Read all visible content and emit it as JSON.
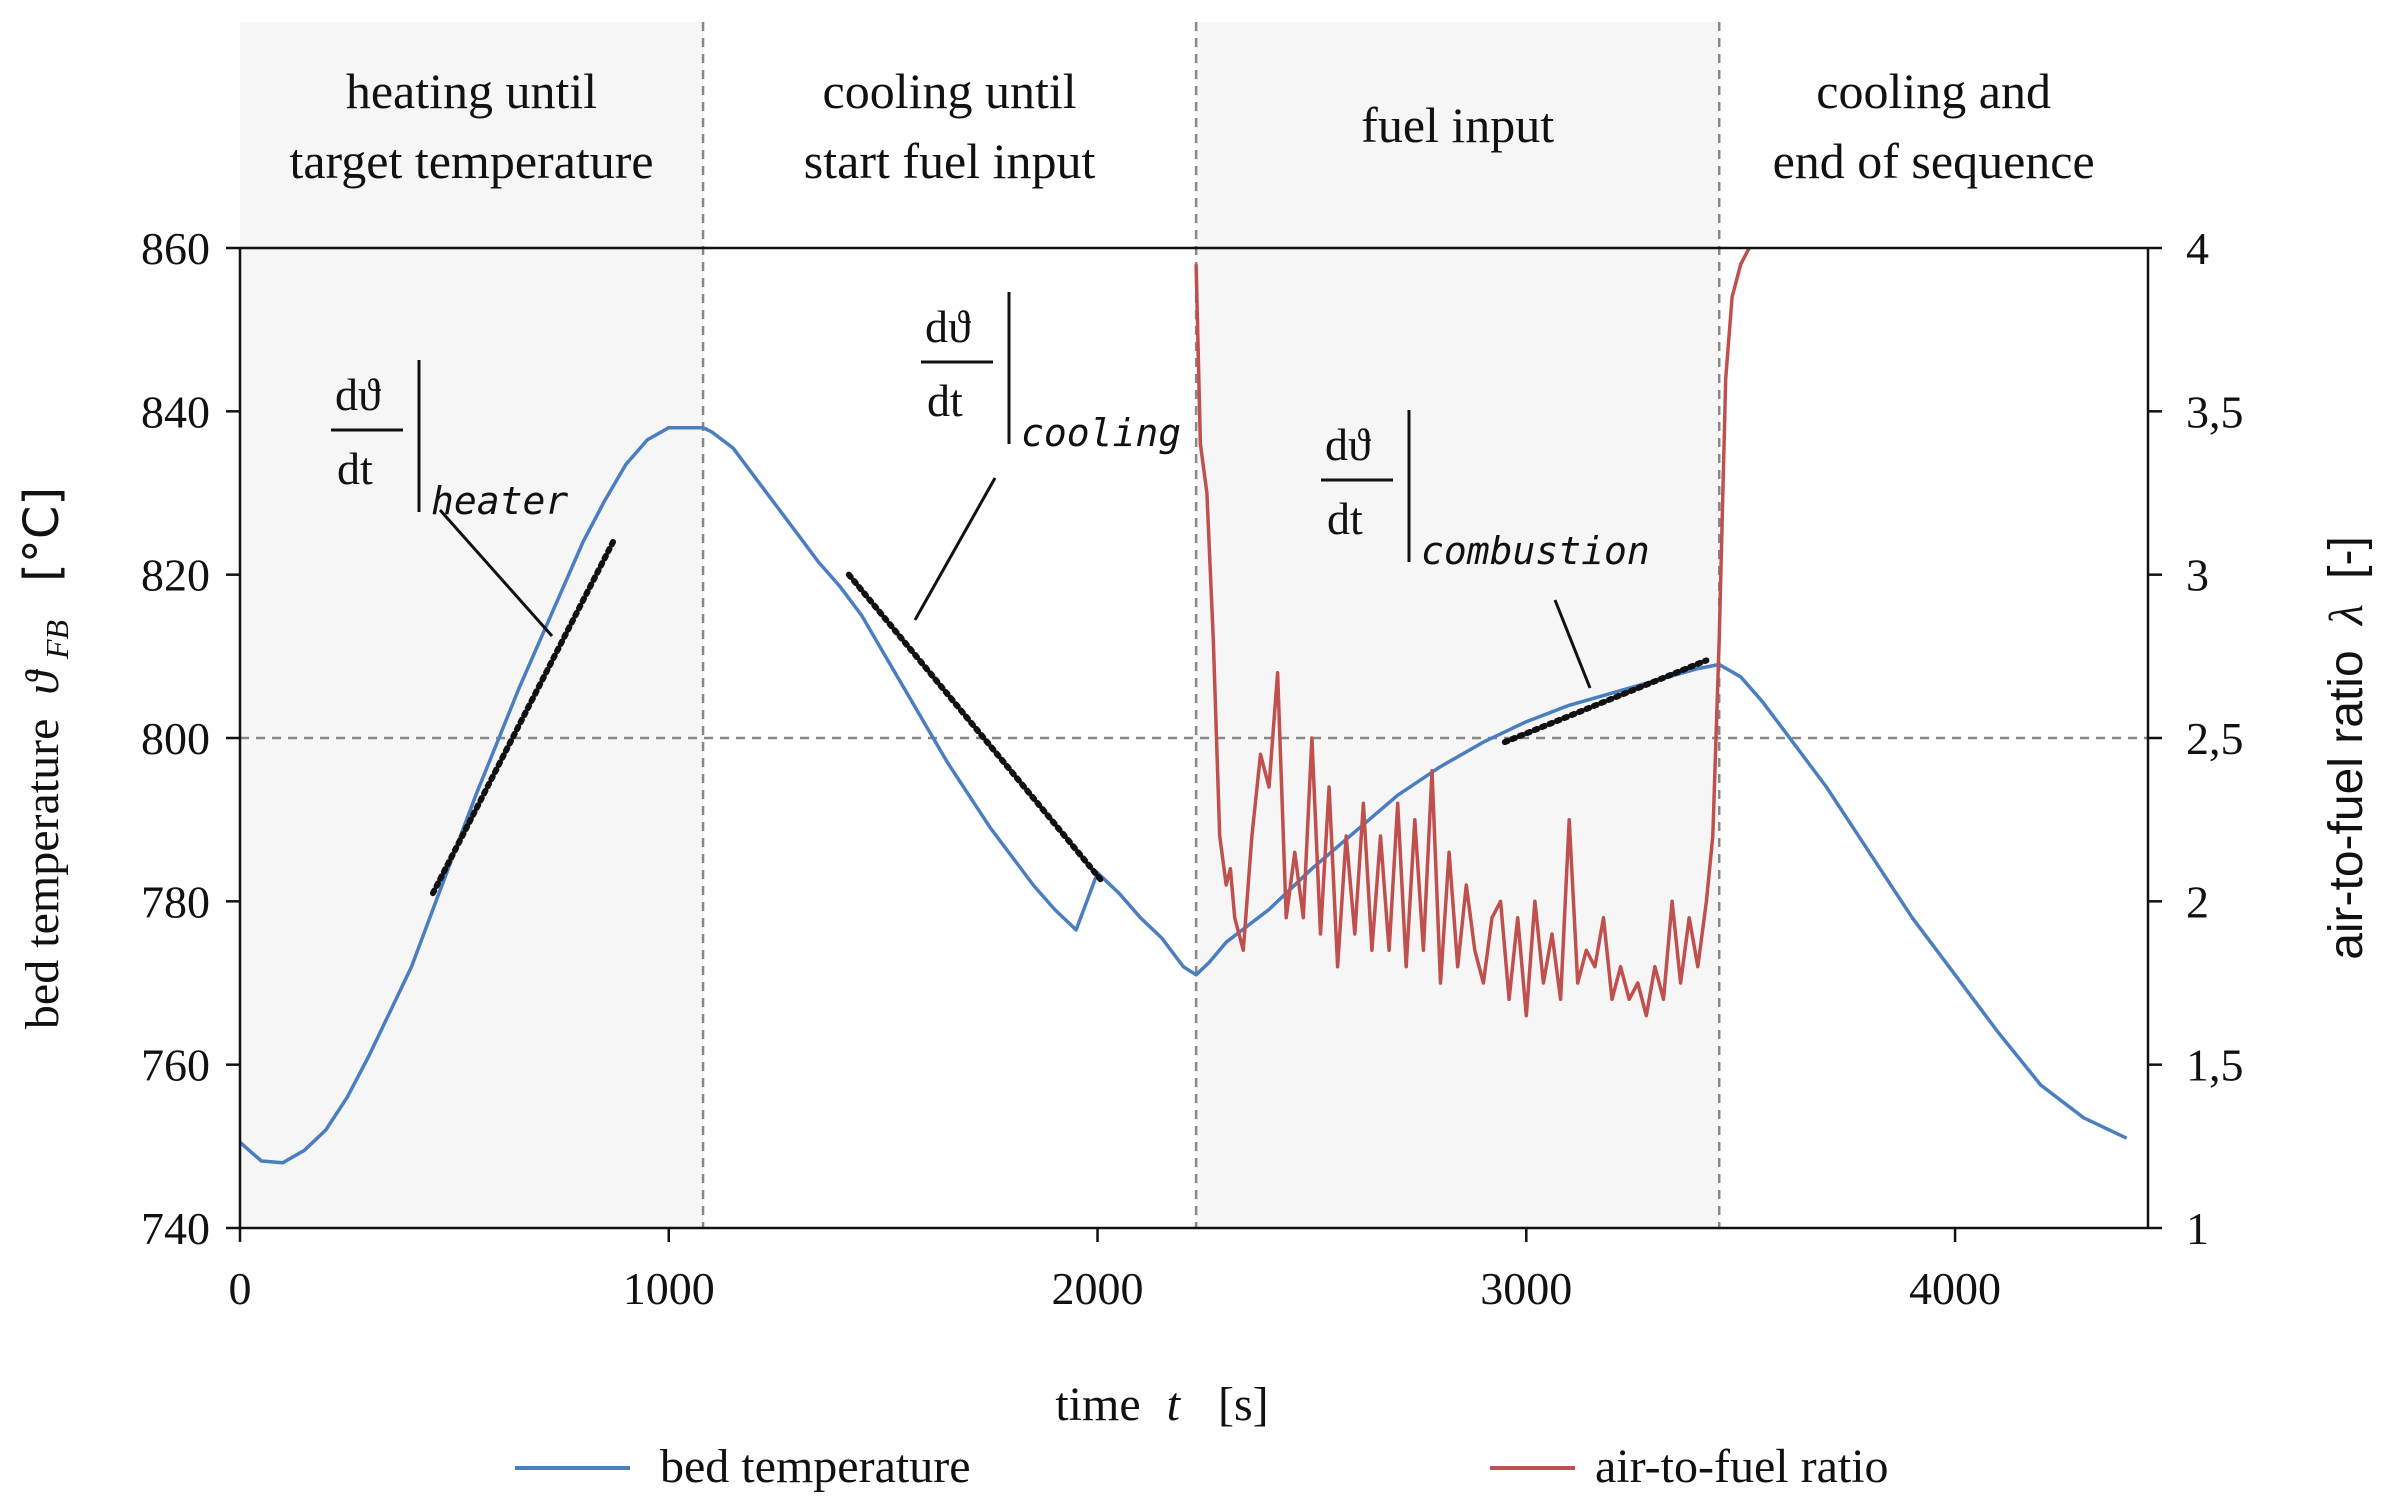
{
  "chart_data": {
    "type": "line",
    "xlabel_main": "time",
    "xlabel_var": "t",
    "xlabel_unit": "[s]",
    "ylabel_left_main": "bed temperature",
    "ylabel_left_var": "ϑ",
    "ylabel_left_sub": "FB",
    "ylabel_left_unit": "[°C]",
    "ylabel_right_main": "air-to-fuel ratio",
    "ylabel_right_var": "λ",
    "ylabel_right_unit": "[-]",
    "xlim": [
      0,
      4450
    ],
    "ylim_left": [
      740,
      860
    ],
    "ylim_right": [
      1,
      4
    ],
    "x_ticks": [
      "0",
      "1000",
      "2000",
      "3000",
      "4000"
    ],
    "y_left_ticks": [
      "740",
      "760",
      "780",
      "800",
      "820",
      "840",
      "860"
    ],
    "y_right_ticks": [
      "1",
      "1,5",
      "2",
      "2,5",
      "3",
      "3,5",
      "4"
    ],
    "reference_line_left": 800,
    "phase_boundaries": [
      1080,
      2230,
      3450
    ],
    "phases": [
      {
        "line1": "heating until",
        "line2": "target temperature",
        "shaded": true
      },
      {
        "line1": "cooling until",
        "line2": "start fuel input",
        "shaded": false
      },
      {
        "line1": "fuel input",
        "line2": "",
        "shaded": true
      },
      {
        "line1": "cooling and",
        "line2": "end of sequence",
        "shaded": false
      }
    ],
    "series": [
      {
        "name": "bed temperature",
        "axis": "left",
        "color": "#4a7ec0",
        "x": [
          0,
          50,
          100,
          150,
          200,
          250,
          300,
          350,
          400,
          450,
          500,
          550,
          600,
          650,
          700,
          750,
          800,
          850,
          900,
          950,
          1000,
          1050,
          1080,
          1100,
          1150,
          1200,
          1250,
          1300,
          1350,
          1400,
          1450,
          1500,
          1550,
          1600,
          1650,
          1700,
          1750,
          1800,
          1850,
          1900,
          1950,
          2000,
          2050,
          2100,
          2150,
          2200,
          2230,
          2260,
          2300,
          2400,
          2500,
          2600,
          2700,
          2800,
          2900,
          3000,
          3100,
          3200,
          3300,
          3400,
          3450,
          3500,
          3550,
          3600,
          3700,
          3800,
          3900,
          4000,
          4100,
          4200,
          4300,
          4400
        ],
        "y": [
          750.5,
          748.2,
          748.0,
          749.5,
          752,
          756,
          761,
          766.5,
          772,
          779,
          786,
          793,
          799.5,
          806,
          812,
          818,
          824,
          829,
          833.5,
          836.5,
          838,
          838,
          838,
          837.5,
          835.5,
          832,
          828.5,
          825,
          821.5,
          818.5,
          815,
          810.5,
          806,
          801.5,
          797,
          793,
          789,
          785.5,
          782,
          779,
          776.5,
          783.5,
          781,
          778,
          775.5,
          772,
          771,
          772.5,
          775,
          779,
          784,
          788.5,
          793,
          796.5,
          799.5,
          802,
          804,
          805.5,
          807,
          808.5,
          809,
          807.5,
          804.5,
          801,
          794,
          786,
          778,
          771,
          764,
          757.5,
          753.5,
          751
        ]
      },
      {
        "name": "air-to-fuel ratio",
        "axis": "right",
        "color": "#c0504d",
        "x": [
          2230,
          2240,
          2255,
          2270,
          2285,
          2300,
          2310,
          2320,
          2340,
          2360,
          2380,
          2400,
          2420,
          2440,
          2460,
          2480,
          2500,
          2520,
          2540,
          2560,
          2580,
          2600,
          2620,
          2640,
          2660,
          2680,
          2700,
          2720,
          2740,
          2760,
          2780,
          2800,
          2820,
          2840,
          2860,
          2880,
          2900,
          2920,
          2940,
          2960,
          2980,
          3000,
          3020,
          3040,
          3060,
          3080,
          3100,
          3120,
          3140,
          3160,
          3180,
          3200,
          3220,
          3240,
          3260,
          3280,
          3300,
          3320,
          3340,
          3360,
          3380,
          3400,
          3420,
          3435,
          3450,
          3465,
          3480,
          3500,
          3520
        ],
        "y": [
          3.95,
          3.4,
          3.25,
          2.8,
          2.2,
          2.05,
          2.1,
          1.95,
          1.85,
          2.2,
          2.45,
          2.35,
          2.7,
          1.95,
          2.15,
          1.95,
          2.5,
          1.9,
          2.35,
          1.8,
          2.2,
          1.9,
          2.3,
          1.85,
          2.2,
          1.85,
          2.3,
          1.8,
          2.25,
          1.85,
          2.4,
          1.75,
          2.15,
          1.8,
          2.05,
          1.85,
          1.75,
          1.95,
          2.0,
          1.7,
          1.95,
          1.65,
          2.0,
          1.75,
          1.9,
          1.7,
          2.25,
          1.75,
          1.85,
          1.8,
          1.95,
          1.7,
          1.8,
          1.7,
          1.75,
          1.65,
          1.8,
          1.7,
          2.0,
          1.75,
          1.95,
          1.8,
          2.0,
          2.2,
          2.8,
          3.6,
          3.85,
          3.95,
          4.0
        ]
      }
    ],
    "slope_annotations": [
      {
        "label_num": "dϑ",
        "label_den": "dt",
        "label_sub": "heater",
        "x0": 450,
        "y0": 781,
        "x1": 870,
        "y1": 824
      },
      {
        "label_num": "dϑ",
        "label_den": "dt",
        "label_sub": "cooling",
        "x0": 1420,
        "y0": 820,
        "x1": 2010,
        "y1": 782.5
      },
      {
        "label_num": "dϑ",
        "label_den": "dt",
        "label_sub": "combustion",
        "x0": 2950,
        "y0": 799.5,
        "x1": 3420,
        "y1": 809.5
      }
    ],
    "legend": [
      {
        "label": "bed temperature",
        "color": "#4a7ec0"
      },
      {
        "label": "air-to-fuel ratio",
        "color": "#c0504d"
      }
    ]
  }
}
